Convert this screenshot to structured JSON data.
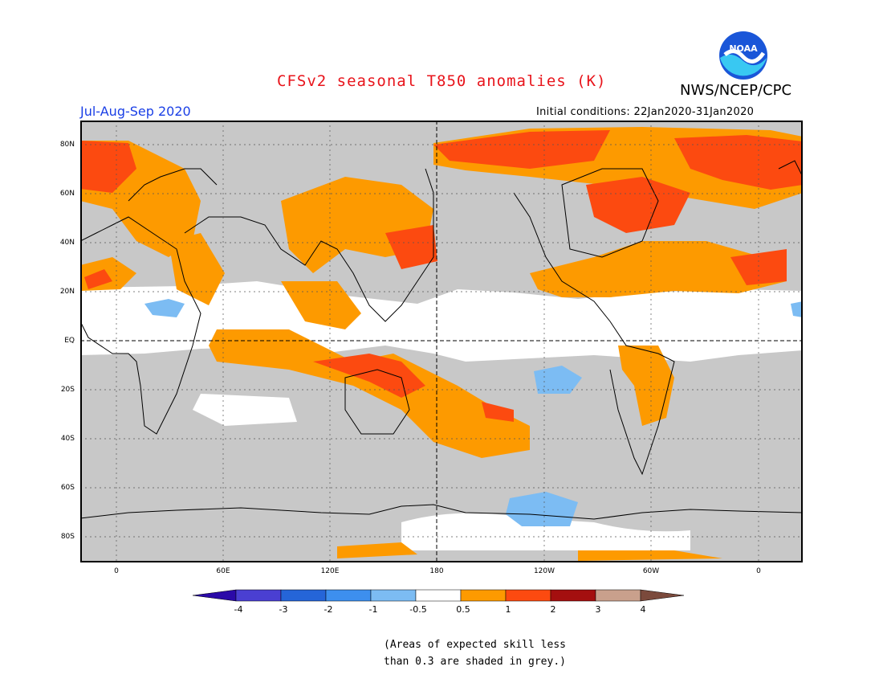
{
  "header": {
    "title": "CFSv2 seasonal T850 anomalies (K)",
    "agency": "NWS/NCEP/CPC",
    "logo_text": "NOAA",
    "season": "Jul-Aug-Sep 2020",
    "initial_conditions": "Initial conditions: 22Jan2020-31Jan2020"
  },
  "map": {
    "lat_labels": [
      "80N",
      "60N",
      "40N",
      "20N",
      "EQ",
      "20S",
      "40S",
      "60S",
      "80S"
    ],
    "lon_labels": [
      "0",
      "60E",
      "120E",
      "180",
      "120W",
      "60W",
      "0"
    ],
    "ocean_grey_color": "#c8c8c8",
    "land_line_color": "#000000"
  },
  "legend": {
    "tick_labels": [
      "-4",
      "-3",
      "-2",
      "-1",
      "-0.5",
      "0.5",
      "1",
      "2",
      "3",
      "4"
    ],
    "colors": [
      "#2b0aa8",
      "#4a3fd2",
      "#2565d8",
      "#3d8fee",
      "#7cbcf3",
      "#ffffff",
      "#fd9a00",
      "#fc4a10",
      "#a40f0f",
      "#c9a08c",
      "#7b4a3c"
    ]
  },
  "footer": {
    "note_line1": "(Areas of expected skill less",
    "note_line2": "than 0.3 are shaded in grey.)"
  }
}
